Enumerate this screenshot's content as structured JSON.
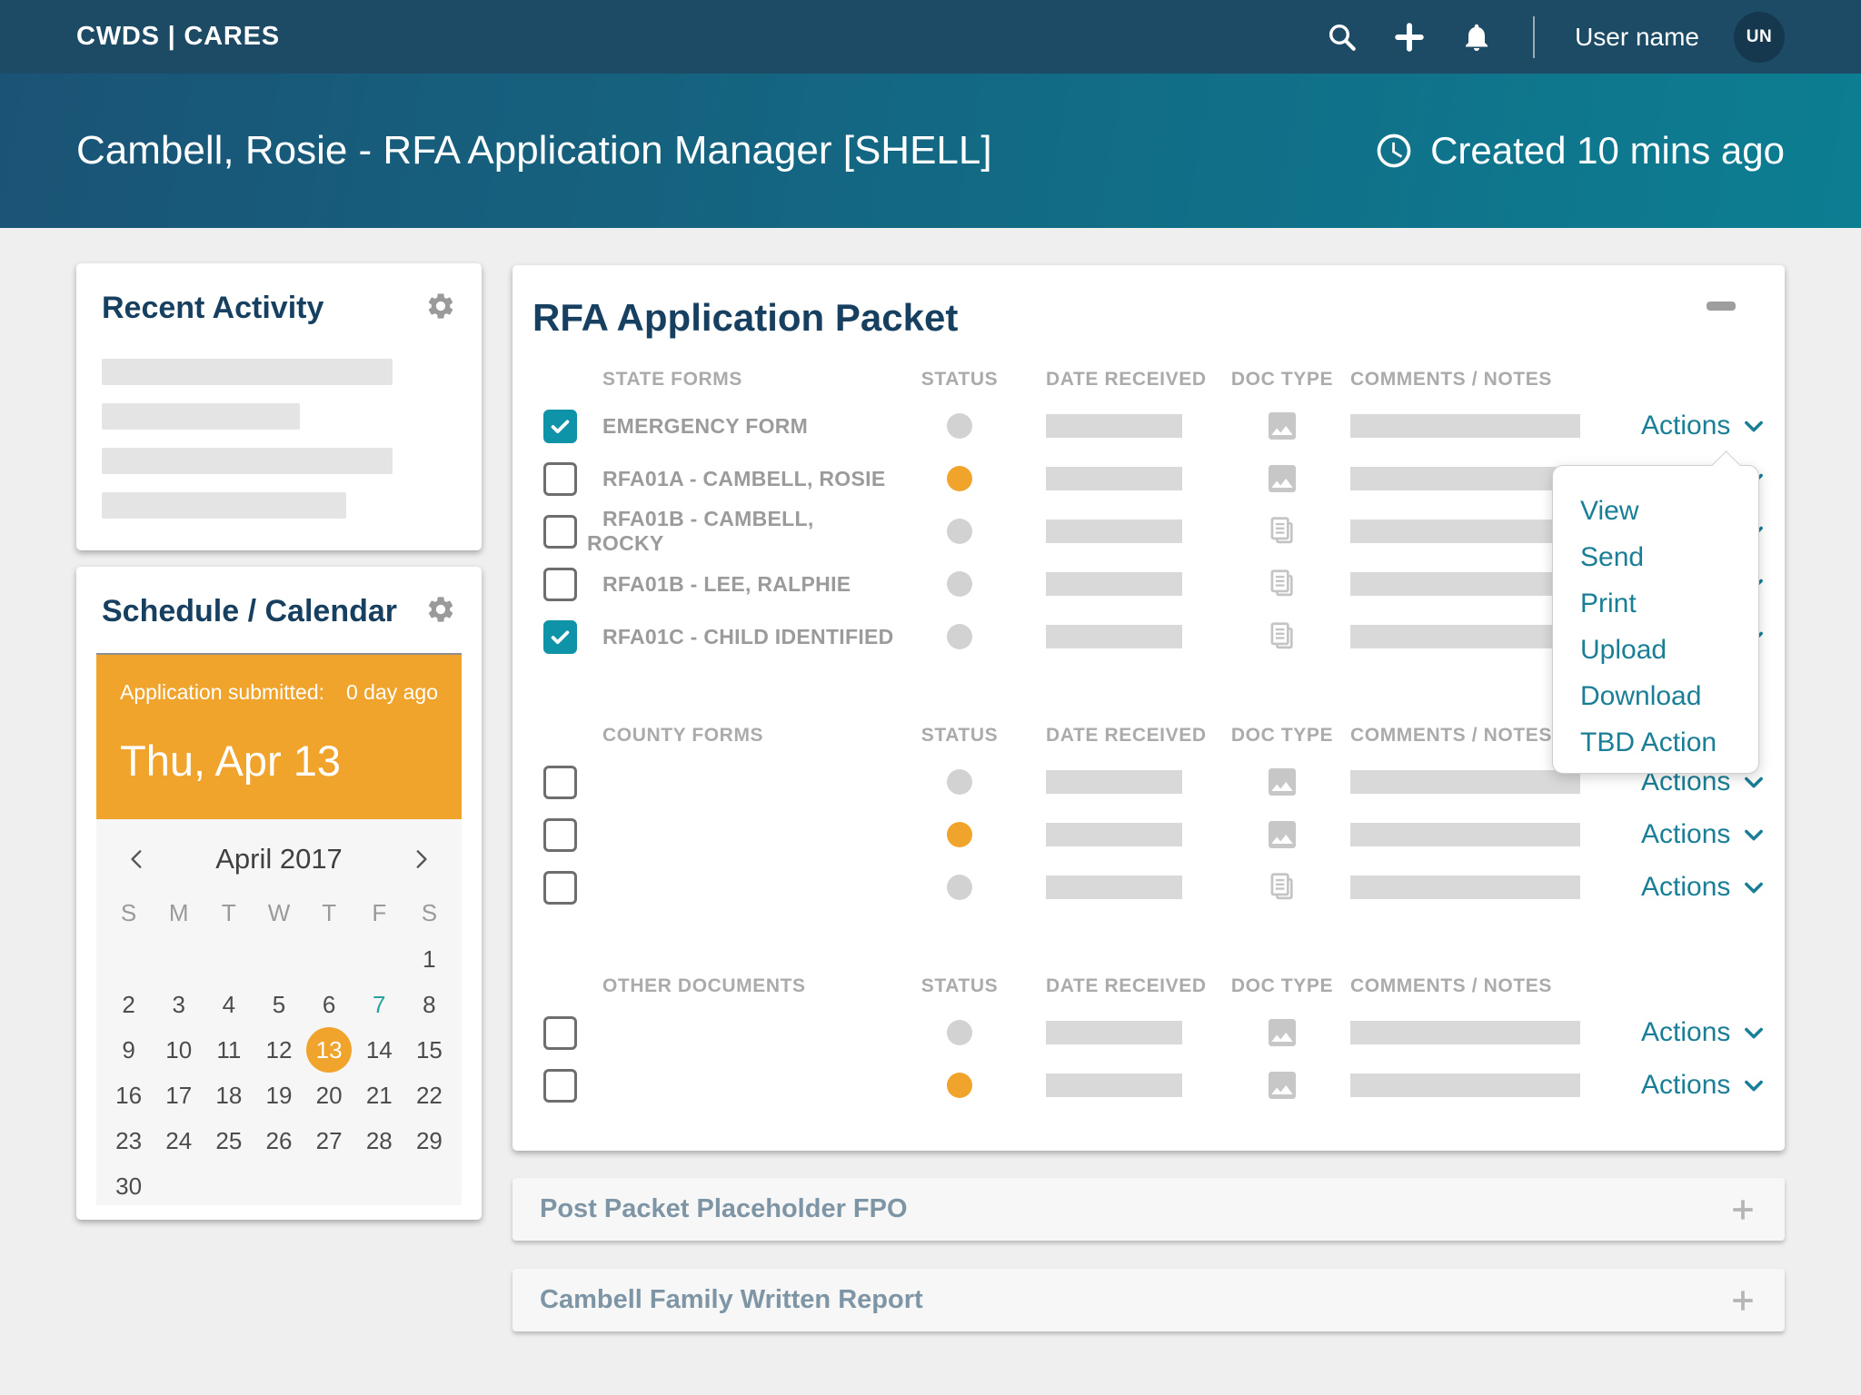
{
  "navbar": {
    "brand": "CWDS | CARES",
    "user_label": "User name",
    "avatar_initials": "UN"
  },
  "header": {
    "title": "Cambell, Rosie - RFA Application Manager [SHELL]",
    "created": "Created 10 mins ago"
  },
  "recent_activity": {
    "title": "Recent Activity"
  },
  "schedule": {
    "title": "Schedule / Calendar",
    "banner": {
      "label": "Application submitted:",
      "ago": "0 day ago",
      "date": "Thu, Apr 13"
    },
    "calendar": {
      "month": "April 2017",
      "weekdays": [
        "S",
        "M",
        "T",
        "W",
        "T",
        "F",
        "S"
      ],
      "weeks": [
        [
          "",
          "",
          "",
          "",
          "",
          "",
          "1"
        ],
        [
          "2",
          "3",
          "4",
          "5",
          "6",
          "7",
          "8"
        ],
        [
          "9",
          "10",
          "11",
          "12",
          "13",
          "14",
          "15"
        ],
        [
          "16",
          "17",
          "18",
          "19",
          "20",
          "21",
          "22"
        ],
        [
          "23",
          "24",
          "25",
          "26",
          "27",
          "28",
          "29"
        ],
        [
          "30",
          "",
          "",
          "",
          "",
          "",
          ""
        ]
      ],
      "selected_day": "13",
      "highlight_day": "7"
    }
  },
  "packet": {
    "title": "RFA Application Packet",
    "columns": [
      "STATUS",
      "DATE RECEIVED",
      "DOC TYPE",
      "COMMENTS / NOTES"
    ],
    "actions_label": "Actions",
    "sections": [
      {
        "name": "STATE FORMS",
        "rows": [
          {
            "label": "EMERGENCY FORM",
            "checked": true,
            "status": "gray",
            "doc_type": "image"
          },
          {
            "label": "RFA01A - CAMBELL, ROSIE",
            "checked": false,
            "status": "orange",
            "doc_type": "image"
          },
          {
            "label": "RFA01B - CAMBELL, ROCKY",
            "checked": false,
            "status": "gray",
            "doc_type": "copy"
          },
          {
            "label": "RFA01B - LEE, RALPHIE",
            "checked": false,
            "status": "gray",
            "doc_type": "copy"
          },
          {
            "label": "RFA01C - CHILD IDENTIFIED",
            "checked": true,
            "status": "gray",
            "doc_type": "copy"
          }
        ]
      },
      {
        "name": "COUNTY FORMS",
        "rows": [
          {
            "label": "",
            "checked": false,
            "status": "gray",
            "doc_type": "image"
          },
          {
            "label": "",
            "checked": false,
            "status": "orange",
            "doc_type": "image"
          },
          {
            "label": "",
            "checked": false,
            "status": "gray",
            "doc_type": "copy"
          }
        ]
      },
      {
        "name": "OTHER DOCUMENTS",
        "rows": [
          {
            "label": "",
            "checked": false,
            "status": "gray",
            "doc_type": "image"
          },
          {
            "label": "",
            "checked": false,
            "status": "orange",
            "doc_type": "image"
          }
        ]
      }
    ],
    "dropdown": {
      "items": [
        "View",
        "Send",
        "Print",
        "Upload",
        "Download",
        "TBD Action"
      ]
    }
  },
  "panels": [
    {
      "title": "Post Packet Placeholder FPO"
    },
    {
      "title": "Cambell Family Written Report"
    }
  ],
  "colors": {
    "navbar": "#1d4a64",
    "header_gradient_left": "#1a5375",
    "header_gradient_right": "#0c7e92",
    "accent_teal": "#1a7e96",
    "checkbox_teal": "#0f93a8",
    "status_orange": "#f0a42c",
    "status_gray": "#d2d2d2",
    "title_navy": "#173f5f",
    "highlight_day_teal": "#27a49f"
  }
}
